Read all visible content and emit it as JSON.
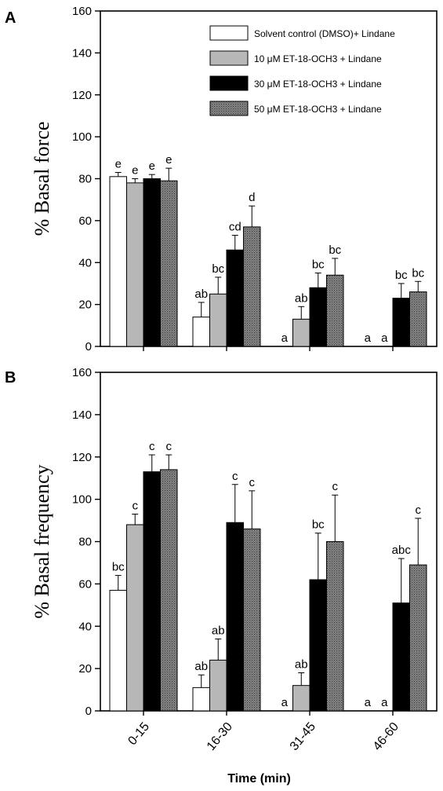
{
  "chart_data": [
    {
      "panel_label": "A",
      "type": "bar",
      "ylabel": "% Basal force",
      "xlabel": "",
      "ylim": [
        0,
        160
      ],
      "yticks": [
        0,
        20,
        40,
        60,
        80,
        100,
        120,
        140,
        160
      ],
      "categories": [
        "0-15",
        "16-30",
        "31-45",
        "46-60"
      ],
      "legend_position": "top-right",
      "series": [
        {
          "name": "Solvent control (DMSO)+ Lindane",
          "fill": "white",
          "values": [
            81,
            14,
            0,
            0
          ],
          "errors": [
            2,
            7,
            0,
            0
          ],
          "labels": [
            "e",
            "ab",
            "a",
            "a"
          ]
        },
        {
          "name": "10 μM ET-18-OCH3 + Lindane",
          "fill": "light-hatch",
          "values": [
            78,
            25,
            13,
            0
          ],
          "errors": [
            2,
            8,
            6,
            0
          ],
          "labels": [
            "e",
            "bc",
            "ab",
            "a"
          ]
        },
        {
          "name": "30 μM ET-18-OCH3 + Lindane",
          "fill": "black",
          "values": [
            80,
            46,
            28,
            23
          ],
          "errors": [
            2,
            7,
            7,
            7
          ],
          "labels": [
            "e",
            "cd",
            "bc",
            "bc"
          ]
        },
        {
          "name": "50 μM ET-18-OCH3 + Lindane",
          "fill": "dark-stipple",
          "values": [
            79,
            57,
            34,
            26
          ],
          "errors": [
            6,
            10,
            8,
            5
          ],
          "labels": [
            "e",
            "d",
            "bc",
            "bc"
          ]
        }
      ]
    },
    {
      "panel_label": "B",
      "type": "bar",
      "ylabel": "% Basal frequency",
      "xlabel": "Time (min)",
      "ylim": [
        0,
        160
      ],
      "yticks": [
        0,
        20,
        40,
        60,
        80,
        100,
        120,
        140,
        160
      ],
      "categories": [
        "0-15",
        "16-30",
        "31-45",
        "46-60"
      ],
      "series": [
        {
          "name": "Solvent control (DMSO)+ Lindane",
          "fill": "white",
          "values": [
            57,
            11,
            0,
            0
          ],
          "errors": [
            7,
            6,
            0,
            0
          ],
          "labels": [
            "bc",
            "ab",
            "a",
            "a"
          ]
        },
        {
          "name": "10 μM ET-18-OCH3 + Lindane",
          "fill": "light-hatch",
          "values": [
            88,
            24,
            12,
            0
          ],
          "errors": [
            5,
            10,
            6,
            0
          ],
          "labels": [
            "c",
            "ab",
            "ab",
            "a"
          ]
        },
        {
          "name": "30 μM ET-18-OCH3 + Lindane",
          "fill": "black",
          "values": [
            113,
            89,
            62,
            51
          ],
          "errors": [
            8,
            18,
            22,
            21
          ],
          "labels": [
            "c",
            "c",
            "bc",
            "abc"
          ]
        },
        {
          "name": "50 μM ET-18-OCH3 + Lindane",
          "fill": "dark-stipple",
          "values": [
            114,
            86,
            80,
            69
          ],
          "errors": [
            7,
            18,
            22,
            22
          ],
          "labels": [
            "c",
            "c",
            "c",
            "c"
          ]
        }
      ]
    }
  ]
}
